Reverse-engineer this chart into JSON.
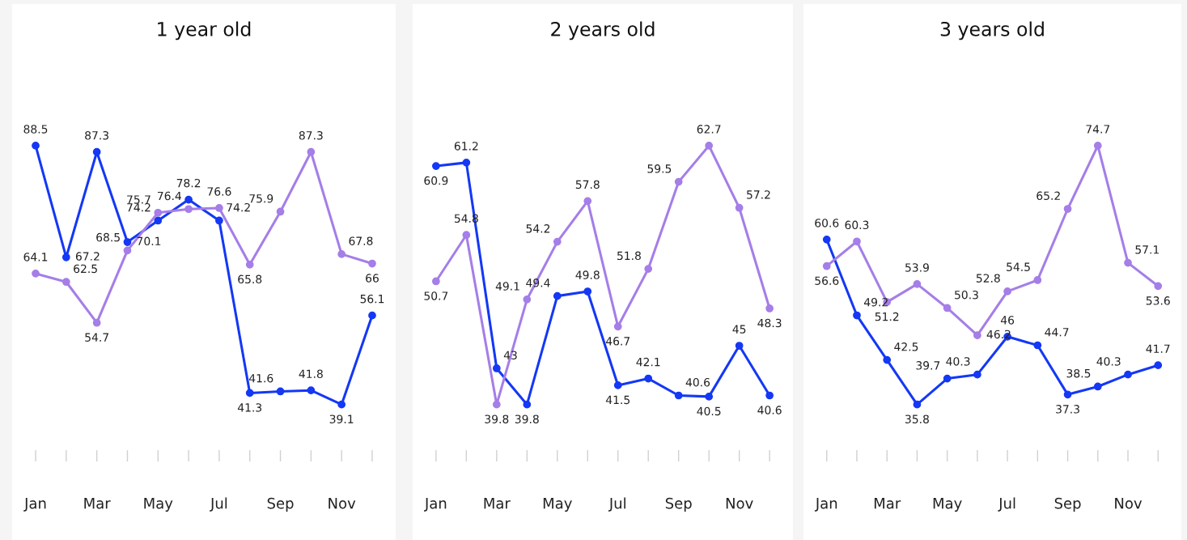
{
  "chart_data": [
    {
      "type": "line",
      "title": "1 year old",
      "categories": [
        "Jan",
        null,
        "Mar",
        null,
        "May",
        null,
        "Jul",
        null,
        "Sep",
        null,
        "Nov",
        null
      ],
      "tick_labels": "x",
      "data_labels": true,
      "marker": "circle",
      "grid": false,
      "series": [
        {
          "color": "#1438f5",
          "values": [
            88.5,
            67.2,
            87.3,
            70.1,
            74.2,
            78.2,
            74.2,
            41.3,
            41.6,
            41.8,
            39.1,
            56.1
          ]
        },
        {
          "color": "#a57ee8",
          "values": [
            64.1,
            62.5,
            54.7,
            68.5,
            75.7,
            76.4,
            76.6,
            65.8,
            75.9,
            87.3,
            67.8,
            66
          ]
        }
      ]
    },
    {
      "type": "line",
      "title": "2 years old",
      "categories": [
        "Jan",
        null,
        "Mar",
        null,
        "May",
        null,
        "Jul",
        null,
        "Sep",
        null,
        "Nov",
        null
      ],
      "tick_labels": "x",
      "data_labels": true,
      "marker": "circle",
      "grid": false,
      "series": [
        {
          "color": "#1438f5",
          "values": [
            60.9,
            61.2,
            43,
            39.8,
            49.4,
            49.8,
            41.5,
            42.1,
            40.6,
            40.5,
            45,
            40.6
          ]
        },
        {
          "color": "#a57ee8",
          "values": [
            50.7,
            54.8,
            39.8,
            49.1,
            54.2,
            57.8,
            46.7,
            51.8,
            59.5,
            62.7,
            57.2,
            48.3
          ]
        }
      ]
    },
    {
      "type": "line",
      "title": "3 years old",
      "categories": [
        "Jan",
        null,
        "Mar",
        null,
        "May",
        null,
        "Jul",
        null,
        "Sep",
        null,
        "Nov",
        null
      ],
      "tick_labels": "x",
      "data_labels": true,
      "marker": "circle",
      "grid": false,
      "series": [
        {
          "color": "#1438f5",
          "values": [
            60.6,
            49.2,
            42.5,
            35.8,
            39.7,
            40.3,
            46,
            44.7,
            37.3,
            38.5,
            40.3,
            41.7
          ]
        },
        {
          "color": "#a57ee8",
          "values": [
            56.6,
            60.3,
            51.2,
            53.9,
            50.3,
            46.2,
            52.8,
            54.5,
            65.2,
            74.7,
            57.1,
            53.6
          ]
        }
      ]
    }
  ]
}
